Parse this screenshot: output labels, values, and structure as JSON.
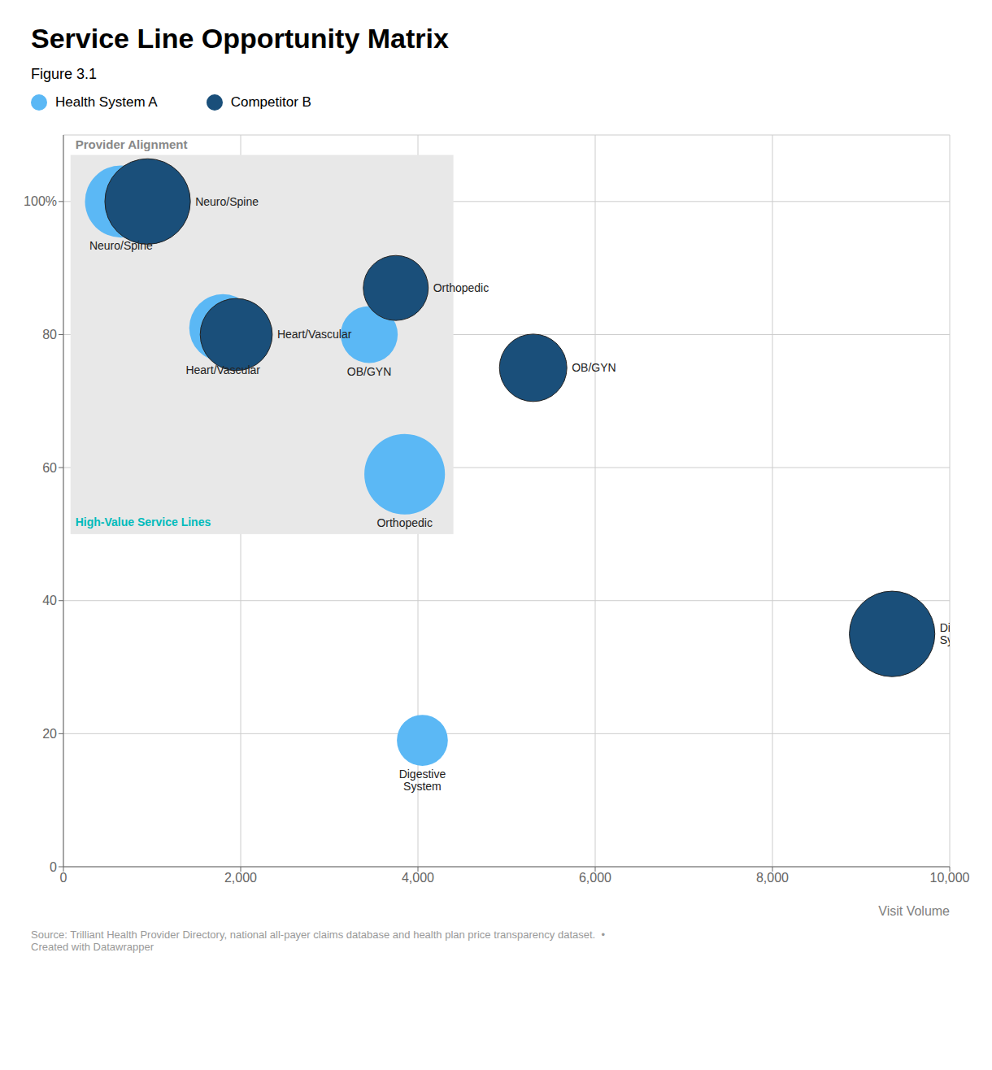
{
  "chart_data": {
    "type": "scatter",
    "title": "Service Line Opportunity Matrix",
    "subtitle": "Figure 3.1",
    "xlabel": "Visit Volume",
    "ylabel": "Provider Alignment",
    "xlim": [
      0,
      10000
    ],
    "ylim": [
      0,
      110
    ],
    "xticks": [
      0,
      {
        "value": 2000,
        "label": "2,000"
      },
      {
        "value": 4000,
        "label": "4,000"
      },
      {
        "value": 6000,
        "label": "6,000"
      },
      {
        "value": 8000,
        "label": "8,000"
      },
      {
        "value": 10000,
        "label": "10,000"
      }
    ],
    "yticks": [
      0,
      20,
      40,
      60,
      80,
      {
        "value": 100,
        "label": "100%"
      }
    ],
    "grid": true,
    "highlight": {
      "x": [
        80,
        4400
      ],
      "y": [
        50,
        107
      ],
      "color": "#E8E8E8",
      "label": "High-Value Service Lines",
      "label_color": "#00BBBB"
    },
    "series": [
      {
        "name": "Health System A",
        "color": "#5BB8F5",
        "x": [
          650,
          1800,
          3450,
          3850,
          4050
        ],
        "y": [
          100,
          81,
          80,
          59,
          19
        ],
        "size": [
          3200,
          2800,
          2000,
          4000,
          1600
        ],
        "labels": [
          "Neuro/Spine",
          "Heart/Vascular",
          "OB/GYN",
          "Orthopedic",
          "Digestive\nSystem"
        ]
      },
      {
        "name": "Competitor B",
        "color": "#1A4F7A",
        "x": [
          950,
          1950,
          3750,
          5300,
          9350
        ],
        "y": [
          100,
          80,
          87,
          75,
          35
        ],
        "size": [
          4500,
          3200,
          2600,
          2800,
          4500
        ],
        "labels": [
          "Neuro/Spine",
          "Heart/Vascular",
          "Orthopedic",
          "OB/GYN",
          "Digestive\nSystem"
        ]
      }
    ],
    "source": "Source: Trilliant Health Provider Directory, national all-payer claims database and health plan price transparency dataset.  •\nCreated with Datawrapper"
  }
}
